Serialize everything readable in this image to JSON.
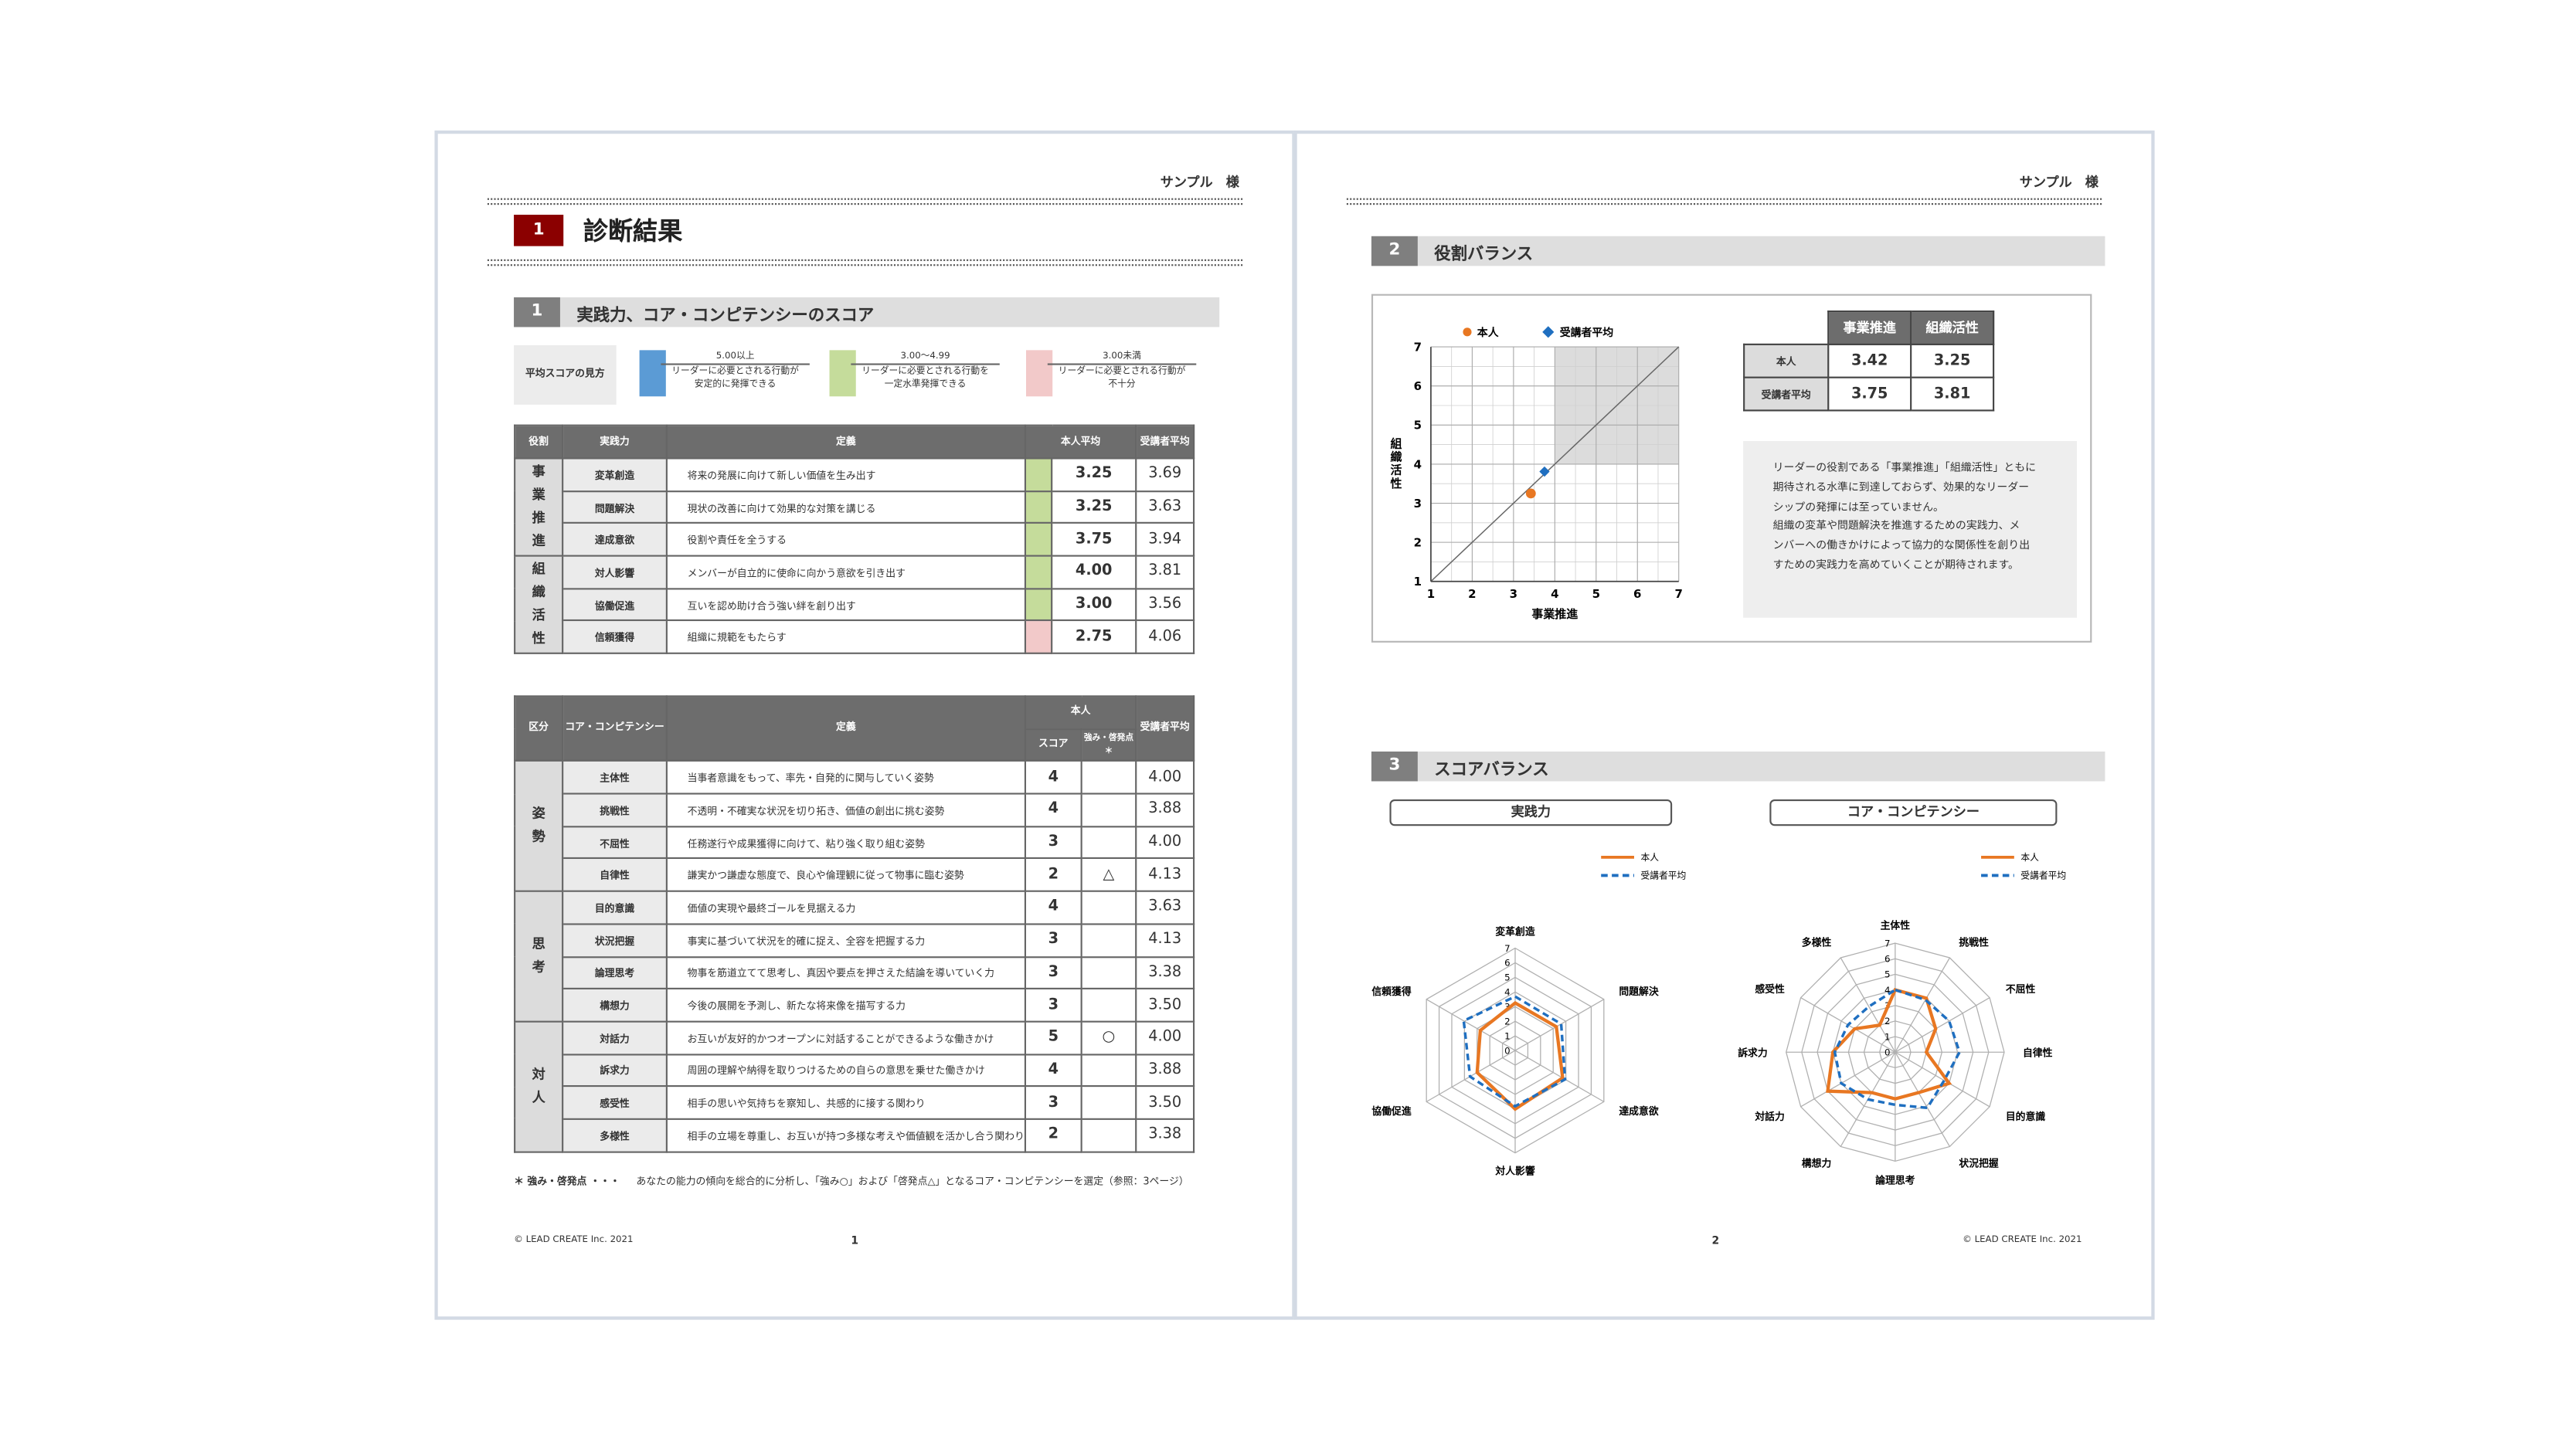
{
  "page1": {
    "client": "サンプル　様",
    "section_num": "1",
    "section_title": "診断結果",
    "sub1_num": "1",
    "sub1_title": "実践力、コア・コンピテンシーのスコア",
    "legend_title": "平均スコアの見方",
    "legend": [
      {
        "range": "5.00以上",
        "desc1": "リーダーに必要とされる行動が",
        "desc2": "安定的に発揮できる",
        "color": "#5b9bd5"
      },
      {
        "range": "3.00～4.99",
        "desc1": "リーダーに必要とされる行動を",
        "desc2": "一定水準発揮できる",
        "color": "#c5dc9b"
      },
      {
        "range": "3.00未満",
        "desc1": "リーダーに必要とされる行動が",
        "desc2": "不十分",
        "color": "#f2c9c9"
      }
    ],
    "table1": {
      "headers": [
        "役割",
        "実践力",
        "定義",
        "本人平均",
        "受講者平均"
      ],
      "groups": [
        {
          "label": "事業推進",
          "rows": [
            {
              "name": "変革創造",
              "def": "将来の発展に向けて新しい価値を生み出す",
              "score": "3.25",
              "avg": "3.69",
              "color": "#c5dc9b"
            },
            {
              "name": "問題解決",
              "def": "現状の改善に向けて効果的な対策を講じる",
              "score": "3.25",
              "avg": "3.63",
              "color": "#c5dc9b"
            },
            {
              "name": "達成意欲",
              "def": "役割や責任を全うする",
              "score": "3.75",
              "avg": "3.94",
              "color": "#c5dc9b"
            }
          ]
        },
        {
          "label": "組織活性",
          "rows": [
            {
              "name": "対人影響",
              "def": "メンバーが自立的に使命に向かう意欲を引き出す",
              "score": "4.00",
              "avg": "3.81",
              "color": "#c5dc9b"
            },
            {
              "name": "協働促進",
              "def": "互いを認め助け合う強い絆を創り出す",
              "score": "3.00",
              "avg": "3.56",
              "color": "#c5dc9b"
            },
            {
              "name": "信頼獲得",
              "def": "組織に規範をもたらす",
              "score": "2.75",
              "avg": "4.06",
              "color": "#f2c9c9"
            }
          ]
        }
      ]
    },
    "table2": {
      "headers": [
        "区分",
        "コア・コンピテンシー",
        "定義",
        "本人",
        "スコア",
        "強み・啓発点＊",
        "受講者平均"
      ],
      "groups": [
        {
          "label": "姿勢",
          "rows": [
            {
              "name": "主体性",
              "def": "当事者意識をもって、率先・自発的に関与していく姿勢",
              "score": "4",
              "mark": "",
              "avg": "4.00"
            },
            {
              "name": "挑戦性",
              "def": "不透明・不確実な状況を切り拓き、価値の創出に挑む姿勢",
              "score": "4",
              "mark": "",
              "avg": "3.88"
            },
            {
              "name": "不屈性",
              "def": "任務遂行や成果獲得に向けて、粘り強く取り組む姿勢",
              "score": "3",
              "mark": "",
              "avg": "4.00"
            },
            {
              "name": "自律性",
              "def": "謙実かつ謙虚な態度で、良心や倫理観に従って物事に臨む姿勢",
              "score": "2",
              "mark": "△",
              "avg": "4.13"
            }
          ]
        },
        {
          "label": "思考",
          "rows": [
            {
              "name": "目的意識",
              "def": "価値の実現や最終ゴールを見据える力",
              "score": "4",
              "mark": "",
              "avg": "3.63"
            },
            {
              "name": "状況把握",
              "def": "事実に基づいて状況を的確に捉え、全容を把握する力",
              "score": "3",
              "mark": "",
              "avg": "4.13"
            },
            {
              "name": "論理思考",
              "def": "物事を筋道立てて思考し、真因や要点を押さえた結論を導いていく力",
              "score": "3",
              "mark": "",
              "avg": "3.38"
            },
            {
              "name": "構想力",
              "def": "今後の展開を予測し、新たな将来像を描写する力",
              "score": "3",
              "mark": "",
              "avg": "3.50"
            }
          ]
        },
        {
          "label": "対人",
          "rows": [
            {
              "name": "対話力",
              "def": "お互いが友好的かつオープンに対話することができるような働きかけ",
              "score": "5",
              "mark": "○",
              "avg": "4.00"
            },
            {
              "name": "訴求力",
              "def": "周囲の理解や納得を取りつけるための自らの意思を乗せた働きかけ",
              "score": "4",
              "mark": "",
              "avg": "3.88"
            },
            {
              "name": "感受性",
              "def": "相手の思いや気持ちを察知し、共感的に接する関わり",
              "score": "3",
              "mark": "",
              "avg": "3.50"
            },
            {
              "name": "多様性",
              "def": "相手の立場を尊重し、お互いが持つ多様な考えや価値観を活かし合う関わり",
              "score": "2",
              "mark": "",
              "avg": "3.38"
            }
          ]
        }
      ]
    },
    "note_label": "＊ 強み・啓発点 ・・・",
    "note_text": "あなたの能力の傾向を総合的に分析し、「強み○」および「啓発点△」となるコア・コンピテンシーを選定（参照：3ページ）",
    "copyright": "© LEAD CREATE Inc. 2021",
    "page_no": "1"
  },
  "page2": {
    "client": "サンプル　様",
    "sub2_num": "2",
    "sub2_title": "役割バランス",
    "sub3_num": "3",
    "sub3_title": "スコアバランス",
    "role_table": {
      "headers": [
        "事業推進",
        "組織活性"
      ],
      "rows": [
        {
          "label": "本人",
          "v1": "3.42",
          "v2": "3.25"
        },
        {
          "label": "受講者平均",
          "v1": "3.75",
          "v2": "3.81"
        }
      ]
    },
    "comment": [
      "リーダーの役割である「事業推進」「組織活性」ともに",
      "期待される水準に到達しておらず、効果的なリーダー",
      "シップの発揮には至っていません。",
      "組織の変革や問題解決を推進するための実践力、メ",
      "ンバーへの働きかけによって協力的な関係性を創り出",
      "すための実践力を高めていくことが期待されます。"
    ],
    "radar1_title": "実践力",
    "radar2_title": "コア・コンピテンシー",
    "copyright": "© LEAD CREATE Inc. 2021",
    "page_no": "2"
  },
  "chart_data": [
    {
      "type": "scatter",
      "xlabel": "事業推進",
      "ylabel": "組織活性",
      "xlim": [
        1,
        7
      ],
      "ylim": [
        1,
        7
      ],
      "grid": true,
      "series": [
        {
          "name": "本人",
          "color": "#e87722",
          "x": [
            3.42
          ],
          "y": [
            3.25
          ]
        },
        {
          "name": "受講者平均",
          "color": "#1f6fc0",
          "x": [
            3.75
          ],
          "y": [
            3.81
          ]
        }
      ]
    },
    {
      "type": "radar",
      "title": "実践力",
      "categories": [
        "変革創造",
        "問題解決",
        "達成意欲",
        "対人影響",
        "協働促進",
        "信頼獲得"
      ],
      "range": [
        0,
        7
      ],
      "ticks": [
        "0",
        "1",
        "2",
        "3",
        "4",
        "5",
        "6",
        "7"
      ],
      "series": [
        {
          "name": "本人",
          "color": "#e87722",
          "values": [
            3.25,
            3.25,
            3.75,
            4.0,
            3.0,
            2.75
          ]
        },
        {
          "name": "受講者平均",
          "color": "#1f6fc0",
          "values": [
            3.69,
            3.63,
            3.94,
            3.81,
            3.56,
            4.06
          ]
        }
      ]
    },
    {
      "type": "radar",
      "title": "コア・コンピテンシー",
      "categories": [
        "主体性",
        "挑戦性",
        "不屈性",
        "自律性",
        "目的意識",
        "状況把握",
        "論理思考",
        "構想力",
        "対話力",
        "訴求力",
        "感受性",
        "多様性"
      ],
      "range": [
        0,
        7
      ],
      "ticks": [
        "0",
        "1",
        "2",
        "3",
        "4",
        "5",
        "6",
        "7"
      ],
      "series": [
        {
          "name": "本人",
          "color": "#e87722",
          "values": [
            4,
            4,
            3,
            2,
            4,
            3,
            3,
            3,
            5,
            4,
            3,
            2
          ]
        },
        {
          "name": "受講者平均",
          "color": "#1f6fc0",
          "values": [
            4.0,
            3.88,
            4.0,
            4.13,
            3.63,
            4.13,
            3.38,
            3.5,
            4.0,
            3.88,
            3.5,
            3.38
          ]
        }
      ]
    }
  ]
}
